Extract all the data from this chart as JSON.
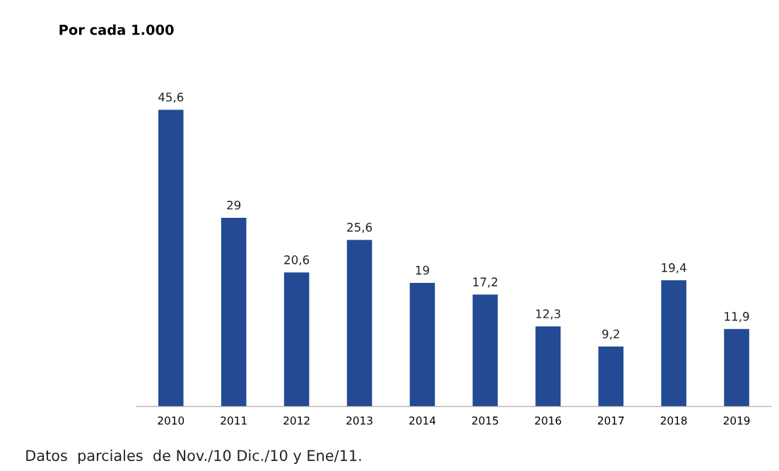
{
  "chart_data": {
    "type": "bar",
    "title": "Por cada 1.000",
    "categories": [
      "2010",
      "2011",
      "2012",
      "2013",
      "2014",
      "2015",
      "2016",
      "2017",
      "2018",
      "2019"
    ],
    "values": [
      45.6,
      29,
      20.6,
      25.6,
      19,
      17.2,
      12.3,
      9.2,
      19.4,
      11.9
    ],
    "value_labels": [
      "45,6",
      "29",
      "20,6",
      "25,6",
      "19",
      "17,2",
      "12,3",
      "9,2",
      "19,4",
      "11,9"
    ],
    "color": "#244a94",
    "grid": false,
    "legend": false,
    "annotations": [
      "Datos  parciales  de Nov./10 Dic./10 y Ene/11."
    ]
  }
}
